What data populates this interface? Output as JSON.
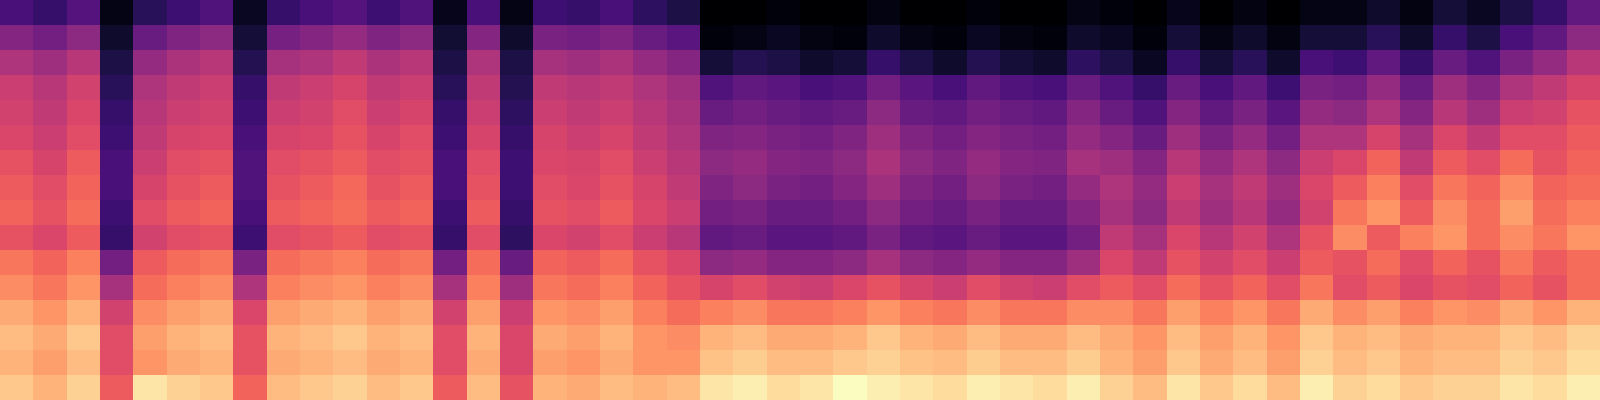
{
  "chart_data": {
    "type": "heatmap",
    "tick_labels": false,
    "cells": [
      [
        22,
        18,
        25,
        4,
        15,
        20,
        24,
        6,
        18,
        22,
        25,
        20,
        24,
        5,
        22,
        4,
        20,
        18,
        22,
        16,
        12,
        0,
        0,
        2,
        0,
        0,
        3,
        0,
        0,
        2,
        0,
        0,
        4,
        2,
        0,
        5,
        0,
        3,
        0,
        4,
        4,
        8,
        3,
        10,
        6,
        12,
        18,
        28
      ],
      [
        36,
        32,
        38,
        8,
        30,
        35,
        38,
        10,
        33,
        36,
        40,
        35,
        38,
        9,
        36,
        8,
        34,
        32,
        35,
        30,
        26,
        2,
        4,
        6,
        3,
        2,
        8,
        4,
        2,
        6,
        3,
        2,
        8,
        6,
        2,
        10,
        4,
        8,
        3,
        10,
        10,
        15,
        8,
        18,
        12,
        22,
        28,
        38
      ],
      [
        46,
        42,
        48,
        12,
        40,
        45,
        48,
        14,
        44,
        46,
        50,
        45,
        48,
        12,
        46,
        12,
        44,
        42,
        45,
        40,
        36,
        10,
        14,
        12,
        8,
        10,
        18,
        12,
        8,
        14,
        10,
        8,
        16,
        12,
        6,
        18,
        10,
        15,
        8,
        22,
        20,
        28,
        18,
        30,
        24,
        34,
        40,
        48
      ],
      [
        52,
        48,
        54,
        15,
        46,
        50,
        52,
        18,
        50,
        52,
        55,
        50,
        52,
        15,
        50,
        14,
        50,
        48,
        50,
        46,
        42,
        24,
        28,
        26,
        22,
        24,
        32,
        26,
        22,
        28,
        24,
        22,
        30,
        24,
        18,
        30,
        22,
        28,
        20,
        34,
        32,
        40,
        30,
        42,
        36,
        46,
        50,
        55
      ],
      [
        54,
        50,
        56,
        18,
        48,
        52,
        54,
        20,
        52,
        54,
        58,
        52,
        55,
        18,
        52,
        16,
        52,
        50,
        52,
        48,
        44,
        30,
        32,
        30,
        28,
        30,
        38,
        30,
        28,
        32,
        30,
        28,
        36,
        30,
        24,
        36,
        28,
        34,
        26,
        40,
        38,
        46,
        36,
        48,
        42,
        52,
        54,
        60
      ],
      [
        56,
        52,
        58,
        20,
        50,
        55,
        56,
        22,
        55,
        56,
        60,
        55,
        58,
        20,
        55,
        18,
        55,
        52,
        55,
        50,
        46,
        35,
        36,
        34,
        32,
        35,
        42,
        35,
        32,
        36,
        34,
        32,
        40,
        36,
        30,
        42,
        34,
        40,
        32,
        46,
        46,
        55,
        44,
        56,
        50,
        58,
        58,
        62
      ],
      [
        60,
        55,
        62,
        22,
        52,
        58,
        60,
        24,
        58,
        60,
        62,
        58,
        60,
        22,
        58,
        20,
        56,
        55,
        58,
        52,
        48,
        38,
        40,
        36,
        35,
        38,
        45,
        38,
        35,
        40,
        36,
        35,
        44,
        42,
        36,
        48,
        40,
        46,
        38,
        52,
        56,
        64,
        50,
        62,
        58,
        66,
        60,
        64
      ],
      [
        62,
        58,
        64,
        22,
        55,
        60,
        62,
        24,
        60,
        62,
        65,
        60,
        62,
        22,
        60,
        20,
        58,
        56,
        60,
        55,
        50,
        35,
        38,
        34,
        32,
        36,
        42,
        35,
        32,
        38,
        34,
        32,
        40,
        46,
        40,
        52,
        44,
        50,
        42,
        56,
        62,
        70,
        58,
        68,
        64,
        72,
        64,
        66
      ],
      [
        64,
        60,
        66,
        20,
        58,
        62,
        64,
        22,
        62,
        64,
        66,
        62,
        64,
        20,
        62,
        18,
        60,
        58,
        62,
        56,
        52,
        32,
        34,
        30,
        30,
        32,
        38,
        32,
        30,
        34,
        30,
        30,
        36,
        44,
        38,
        50,
        42,
        48,
        40,
        54,
        68,
        74,
        62,
        72,
        66,
        76,
        66,
        70
      ],
      [
        60,
        56,
        62,
        18,
        54,
        58,
        60,
        20,
        58,
        60,
        62,
        58,
        60,
        18,
        58,
        16,
        56,
        54,
        58,
        52,
        48,
        28,
        30,
        26,
        26,
        28,
        34,
        28,
        26,
        30,
        26,
        26,
        32,
        50,
        44,
        56,
        48,
        54,
        46,
        60,
        72,
        62,
        70,
        74,
        66,
        72,
        68,
        74
      ],
      [
        68,
        64,
        70,
        32,
        62,
        66,
        68,
        34,
        66,
        68,
        70,
        66,
        68,
        32,
        66,
        30,
        64,
        62,
        66,
        60,
        56,
        38,
        40,
        36,
        36,
        38,
        44,
        38,
        36,
        40,
        36,
        36,
        42,
        56,
        50,
        60,
        54,
        58,
        52,
        62,
        60,
        66,
        58,
        64,
        60,
        68,
        62,
        66
      ],
      [
        72,
        68,
        74,
        44,
        66,
        70,
        72,
        46,
        70,
        72,
        74,
        70,
        72,
        44,
        70,
        42,
        68,
        66,
        70,
        64,
        60,
        55,
        58,
        54,
        52,
        56,
        60,
        55,
        52,
        58,
        54,
        52,
        58,
        62,
        58,
        66,
        60,
        64,
        58,
        68,
        58,
        62,
        56,
        60,
        58,
        64,
        60,
        66
      ],
      [
        78,
        74,
        80,
        54,
        72,
        76,
        78,
        56,
        76,
        78,
        80,
        76,
        78,
        54,
        76,
        52,
        74,
        72,
        76,
        70,
        66,
        70,
        72,
        68,
        68,
        70,
        74,
        70,
        68,
        72,
        68,
        68,
        72,
        72,
        68,
        76,
        70,
        74,
        68,
        78,
        72,
        76,
        70,
        74,
        72,
        78,
        74,
        80
      ],
      [
        82,
        78,
        84,
        58,
        76,
        80,
        82,
        60,
        80,
        82,
        84,
        80,
        82,
        58,
        80,
        56,
        78,
        76,
        80,
        74,
        72,
        80,
        82,
        78,
        78,
        80,
        84,
        80,
        78,
        82,
        78,
        78,
        82,
        78,
        74,
        82,
        76,
        80,
        74,
        84,
        80,
        82,
        78,
        80,
        80,
        84,
        82,
        86
      ],
      [
        80,
        76,
        82,
        58,
        74,
        78,
        80,
        60,
        78,
        80,
        82,
        78,
        80,
        58,
        78,
        56,
        76,
        74,
        78,
        74,
        74,
        83,
        85,
        82,
        82,
        84,
        86,
        83,
        82,
        85,
        82,
        82,
        85,
        80,
        76,
        84,
        78,
        82,
        76,
        86,
        82,
        84,
        80,
        82,
        82,
        86,
        84,
        88
      ],
      [
        84,
        80,
        86,
        62,
        90,
        86,
        84,
        64,
        82,
        84,
        86,
        82,
        84,
        62,
        82,
        60,
        80,
        78,
        82,
        80,
        82,
        90,
        92,
        88,
        90,
        95,
        92,
        90,
        88,
        92,
        90,
        88,
        92,
        86,
        82,
        90,
        84,
        88,
        82,
        92,
        86,
        88,
        84,
        86,
        86,
        90,
        88,
        92
      ]
    ]
  }
}
